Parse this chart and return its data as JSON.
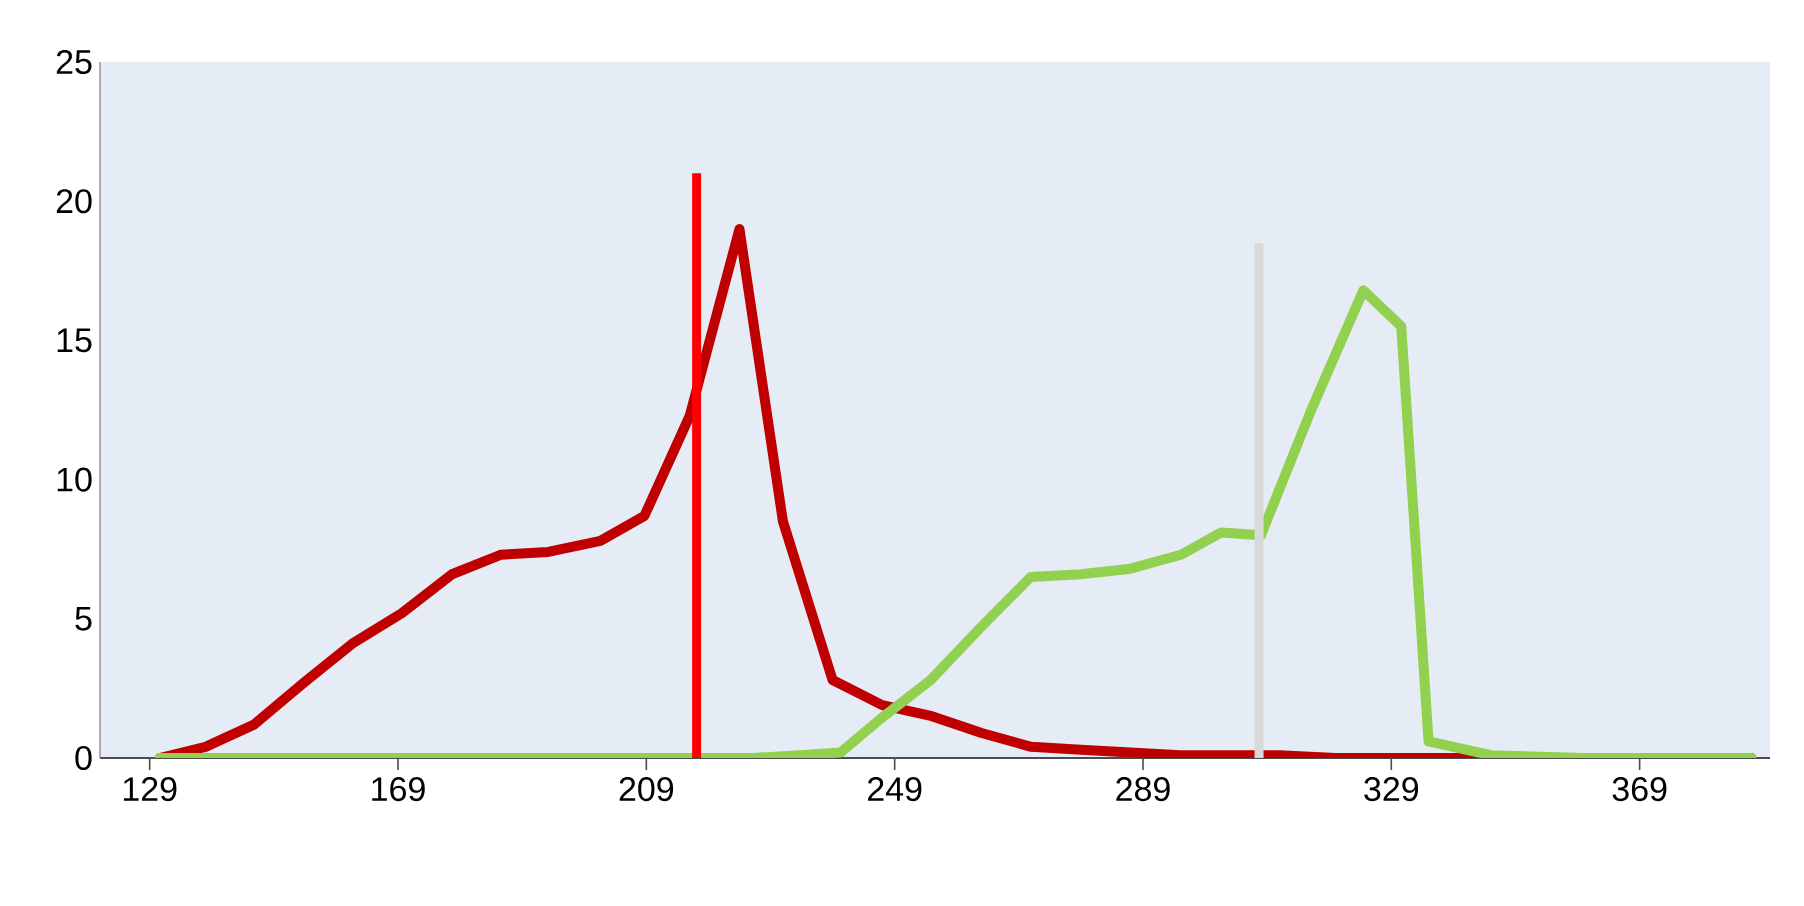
{
  "chart_data": {
    "type": "line",
    "xlim": [
      121,
      390
    ],
    "ylim": [
      0,
      25
    ],
    "xticks": [
      129,
      169,
      209,
      249,
      289,
      329,
      369
    ],
    "yticks": [
      0,
      5,
      10,
      15,
      20,
      25
    ],
    "grid": false,
    "marker": "none",
    "line_style": "solid",
    "series": [
      {
        "color": "#c00000",
        "x": [
          130.6,
          138,
          145.8,
          153.8,
          161.6,
          169.6,
          177.7,
          185.5,
          193.2,
          201.6,
          208.7,
          216,
          224,
          231,
          239,
          247,
          255,
          263,
          271,
          279,
          287,
          295,
          303,
          311,
          320,
          340,
          360,
          387
        ],
        "values": [
          0,
          0.4,
          1.2,
          2.7,
          4.1,
          5.2,
          6.6,
          7.3,
          7.4,
          7.8,
          8.7,
          12.3,
          19,
          8.5,
          2.8,
          1.9,
          1.5,
          0.9,
          0.4,
          0.3,
          0.2,
          0.1,
          0.1,
          0.1,
          0,
          0,
          0,
          0
        ]
      },
      {
        "color": "#92d050",
        "x": [
          130.6,
          160,
          200,
          226,
          233.8,
          240.3,
          246.7,
          254.8,
          262.9,
          270.9,
          279,
          287,
          295.1,
          301.6,
          308,
          316.1,
          324.5,
          330.6,
          335,
          345,
          360,
          387
        ],
        "values": [
          0,
          0,
          0,
          0,
          0.1,
          0.2,
          1.4,
          2.8,
          4.7,
          6.5,
          6.6,
          6.8,
          7.3,
          8.1,
          8,
          12.5,
          16.8,
          15.5,
          0.6,
          0.1,
          0,
          0
        ]
      },
      {
        "type": "bar",
        "color": "#ff0000",
        "x": [
          217.1
        ],
        "values": [
          21
        ]
      },
      {
        "type": "bar",
        "color": "#d9d9d9",
        "x": [
          307.7
        ],
        "values": [
          18.5
        ]
      }
    ]
  }
}
